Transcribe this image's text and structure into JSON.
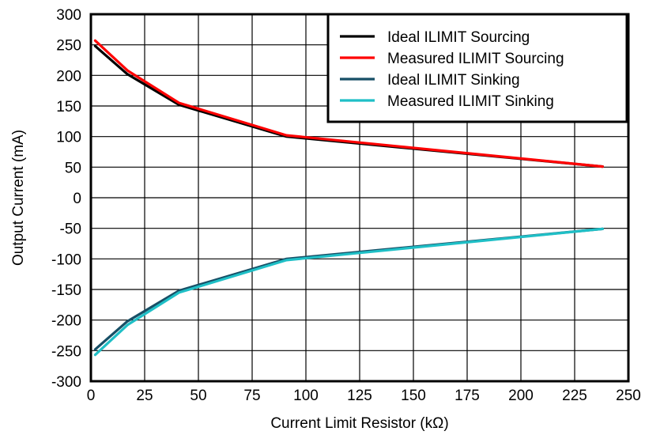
{
  "chart_data": {
    "type": "line",
    "title": "",
    "xlabel": "Current Limit Resistor (kΩ)",
    "ylabel": "Output Current (mA)",
    "xlim": [
      0,
      250
    ],
    "ylim": [
      -300,
      300
    ],
    "x_ticks": [
      0,
      25,
      50,
      75,
      100,
      125,
      150,
      175,
      200,
      225,
      250
    ],
    "y_ticks": [
      300,
      250,
      200,
      150,
      100,
      50,
      0,
      -50,
      -100,
      -150,
      -200,
      -250,
      -300
    ],
    "grid": true,
    "legend_position": "top-right",
    "series": [
      {
        "name": "Ideal ILIMIT Sourcing",
        "color": "#000000",
        "x": [
          2,
          17,
          41,
          91,
          238
        ],
        "y": [
          248,
          202,
          152,
          100,
          51
        ]
      },
      {
        "name": "Measured ILIMIT Sourcing",
        "color": "#ff0000",
        "x": [
          2,
          17,
          41,
          91,
          238
        ],
        "y": [
          257,
          208,
          155,
          102,
          51
        ]
      },
      {
        "name": "Ideal ILIMIT Sinking",
        "color": "#174f66",
        "x": [
          2,
          17,
          41,
          91,
          238
        ],
        "y": [
          -248,
          -202,
          -152,
          -100,
          -51
        ]
      },
      {
        "name": "Measured ILIMIT Sinking",
        "color": "#1fbfc6",
        "x": [
          2,
          17,
          41,
          91,
          238
        ],
        "y": [
          -257,
          -208,
          -155,
          -102,
          -51
        ]
      }
    ]
  }
}
